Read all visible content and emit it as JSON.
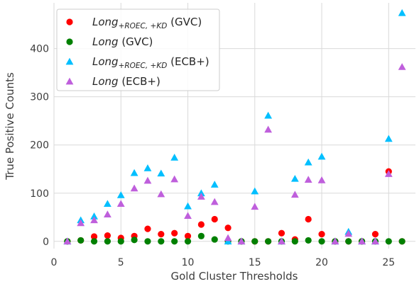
{
  "chart_data": {
    "type": "scatter",
    "xlabel": "Gold Cluster Thresholds",
    "ylabel": "True Positive Counts",
    "xlim": [
      0,
      27
    ],
    "ylim": [
      -15,
      495
    ],
    "xticks": [
      0,
      5,
      10,
      15,
      20,
      25
    ],
    "yticks": [
      0,
      100,
      200,
      300,
      400
    ],
    "grid": true,
    "legend_position": "top-left",
    "series": [
      {
        "name": "Long+ROEC,+KD (GVC)",
        "legend_parts": {
          "base": "Long",
          "sub": "+ROEC, +KD",
          "suffix": " (GVC)"
        },
        "color": "#ff0000",
        "marker": "circle",
        "x": [
          1,
          2,
          3,
          4,
          5,
          6,
          7,
          8,
          9,
          10,
          11,
          12,
          13,
          14,
          15,
          16,
          17,
          18,
          19,
          20,
          21,
          22,
          23,
          24,
          25,
          26
        ],
        "y": [
          0,
          2,
          10,
          12,
          7,
          11,
          26,
          15,
          17,
          11,
          35,
          46,
          28,
          0,
          0,
          0,
          17,
          4,
          46,
          15,
          0,
          0,
          0,
          15,
          145,
          0
        ]
      },
      {
        "name": "Long (GVC)",
        "legend_parts": {
          "base": "Long",
          "sub": "",
          "suffix": " (GVC)"
        },
        "color": "#008000",
        "marker": "circle",
        "x": [
          1,
          2,
          3,
          4,
          5,
          6,
          7,
          8,
          9,
          10,
          11,
          12,
          13,
          14,
          15,
          16,
          17,
          18,
          19,
          20,
          21,
          22,
          23,
          24,
          25,
          26
        ],
        "y": [
          0,
          2,
          0,
          0,
          0,
          3,
          0,
          0,
          0,
          0,
          11,
          4,
          0,
          0,
          0,
          0,
          0,
          0,
          2,
          0,
          0,
          0,
          0,
          0,
          0,
          0
        ]
      },
      {
        "name": "Long+ROEC,+KD (ECB+)",
        "legend_parts": {
          "base": "Long",
          "sub": "+ROEC, +KD",
          "suffix": " (ECB+)"
        },
        "color": "#00bfff",
        "marker": "triangle",
        "x": [
          1,
          2,
          3,
          4,
          5,
          6,
          7,
          8,
          9,
          10,
          11,
          12,
          13,
          14,
          15,
          16,
          17,
          18,
          19,
          20,
          21,
          22,
          23,
          24,
          25,
          26
        ],
        "y": [
          0,
          44,
          52,
          78,
          96,
          142,
          152,
          141,
          174,
          73,
          100,
          118,
          0,
          0,
          104,
          261,
          0,
          130,
          164,
          176,
          0,
          20,
          0,
          0,
          213,
          474
        ]
      },
      {
        "name": "Long (ECB+)",
        "legend_parts": {
          "base": "Long",
          "sub": "",
          "suffix": " (ECB+)"
        },
        "color": "#bf5fdc",
        "marker": "triangle",
        "x": [
          1,
          2,
          3,
          4,
          5,
          6,
          7,
          8,
          9,
          10,
          11,
          12,
          13,
          14,
          15,
          16,
          17,
          18,
          19,
          20,
          21,
          22,
          23,
          24,
          25,
          26
        ],
        "y": [
          0,
          38,
          44,
          56,
          78,
          110,
          126,
          98,
          129,
          53,
          93,
          82,
          7,
          0,
          72,
          232,
          0,
          97,
          128,
          127,
          0,
          16,
          0,
          0,
          140,
          362
        ]
      }
    ]
  }
}
